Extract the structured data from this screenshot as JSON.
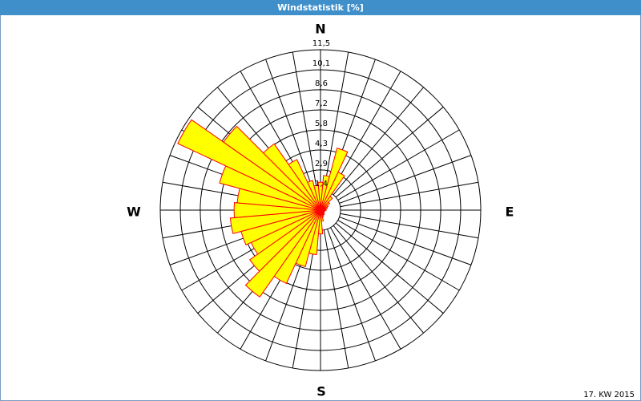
{
  "chart_data": {
    "type": "windrose",
    "title": "Windstatistik [%]",
    "direction_labels": {
      "north": "N",
      "east": "E",
      "south": "S",
      "west": "W"
    },
    "note": "17. KW 2015",
    "x": [
      0,
      10,
      20,
      30,
      40,
      50,
      60,
      70,
      80,
      90,
      100,
      110,
      120,
      130,
      140,
      150,
      160,
      170,
      180,
      190,
      200,
      210,
      220,
      230,
      240,
      250,
      260,
      270,
      280,
      290,
      300,
      310,
      320,
      330,
      340,
      350
    ],
    "values": [
      2.0,
      2.5,
      4.6,
      3.0,
      1.2,
      0.8,
      0.6,
      0.5,
      0.4,
      0.4,
      0.3,
      0.3,
      0.3,
      0.3,
      0.4,
      0.4,
      0.5,
      0.8,
      1.7,
      3.2,
      4.2,
      5.8,
      7.6,
      6.2,
      5.5,
      5.9,
      6.5,
      6.2,
      6.0,
      7.5,
      11.3,
      8.5,
      5.8,
      4.0,
      2.2,
      1.8
    ],
    "color": "#ffff00",
    "edge_color": "#ff0000",
    "rlim": [
      0,
      11.5
    ],
    "rticks": [
      {
        "value": 1.44,
        "label": "1,4"
      },
      {
        "value": 2.88,
        "label": "2,9"
      },
      {
        "value": 4.31,
        "label": "4,3"
      },
      {
        "value": 5.75,
        "label": "5,8"
      },
      {
        "value": 7.19,
        "label": "7,2"
      },
      {
        "value": 8.63,
        "label": "8,6"
      },
      {
        "value": 10.06,
        "label": "10,1"
      },
      {
        "value": 11.5,
        "label": "11,5"
      }
    ],
    "sector_width": 10,
    "spoke_step": 10,
    "grid": true
  }
}
